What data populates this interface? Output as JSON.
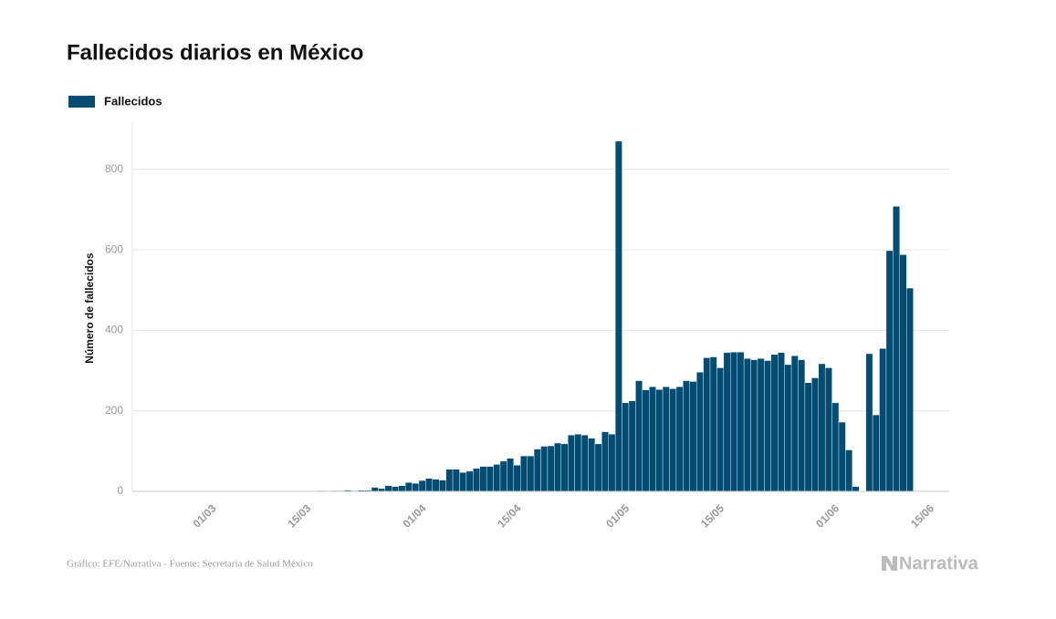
{
  "chart_data": {
    "type": "bar",
    "title": "Fallecidos diarios en México",
    "y_label": "Número de fallecidos",
    "source": "Gráfico: EFE/Narrativa - Fuente: Secretaría de Salud México",
    "logo": "Narrativa",
    "grid": true,
    "series": [
      {
        "name": "Fallecidos",
        "color": "#004c73",
        "values": [
          0,
          0,
          0,
          0,
          0,
          0,
          0,
          0,
          0,
          0,
          0,
          0,
          0,
          0,
          0,
          0,
          0,
          0,
          0,
          1,
          0,
          1,
          1,
          2,
          0,
          2,
          2,
          3,
          2,
          3,
          3,
          10,
          7,
          14,
          12,
          14,
          22,
          20,
          27,
          32,
          30,
          28,
          55,
          55,
          47,
          50,
          57,
          62,
          62,
          67,
          75,
          82,
          65,
          88,
          88,
          105,
          112,
          113,
          120,
          118,
          140,
          142,
          140,
          132,
          118,
          148,
          142,
          870,
          220,
          225,
          275,
          252,
          260,
          253,
          260,
          255,
          260,
          275,
          273,
          296,
          332,
          334,
          307,
          345,
          346,
          346,
          330,
          327,
          330,
          325,
          340,
          345,
          315,
          337,
          327,
          270,
          282,
          317,
          307,
          220,
          172,
          103,
          12,
          null,
          342,
          190,
          355,
          598,
          708,
          588,
          505,
          null,
          null
        ]
      }
    ],
    "categories": [
      null,
      null,
      null,
      null,
      null,
      null,
      "01/03",
      null,
      null,
      null,
      null,
      null,
      null,
      null,
      null,
      null,
      null,
      null,
      null,
      null,
      "15/03",
      null,
      null,
      null,
      null,
      null,
      null,
      null,
      null,
      null,
      null,
      null,
      null,
      null,
      null,
      null,
      null,
      "01/04",
      null,
      null,
      null,
      null,
      null,
      null,
      null,
      null,
      null,
      null,
      null,
      null,
      null,
      "15/04",
      null,
      null,
      null,
      null,
      null,
      null,
      null,
      null,
      null,
      null,
      null,
      null,
      null,
      null,
      null,
      "01/05",
      null,
      null,
      null,
      null,
      null,
      null,
      null,
      null,
      null,
      null,
      null,
      null,
      null,
      "15/05",
      null,
      null,
      null,
      null,
      null,
      null,
      null,
      null,
      null,
      null,
      null,
      null,
      null,
      null,
      null,
      null,
      "01/06",
      null,
      null,
      null,
      null,
      null,
      null,
      null,
      null,
      null,
      null,
      null,
      null,
      null,
      "15/06"
    ],
    "ylim": [
      0,
      915
    ],
    "yticks": [
      0,
      200,
      400,
      600,
      800
    ]
  }
}
